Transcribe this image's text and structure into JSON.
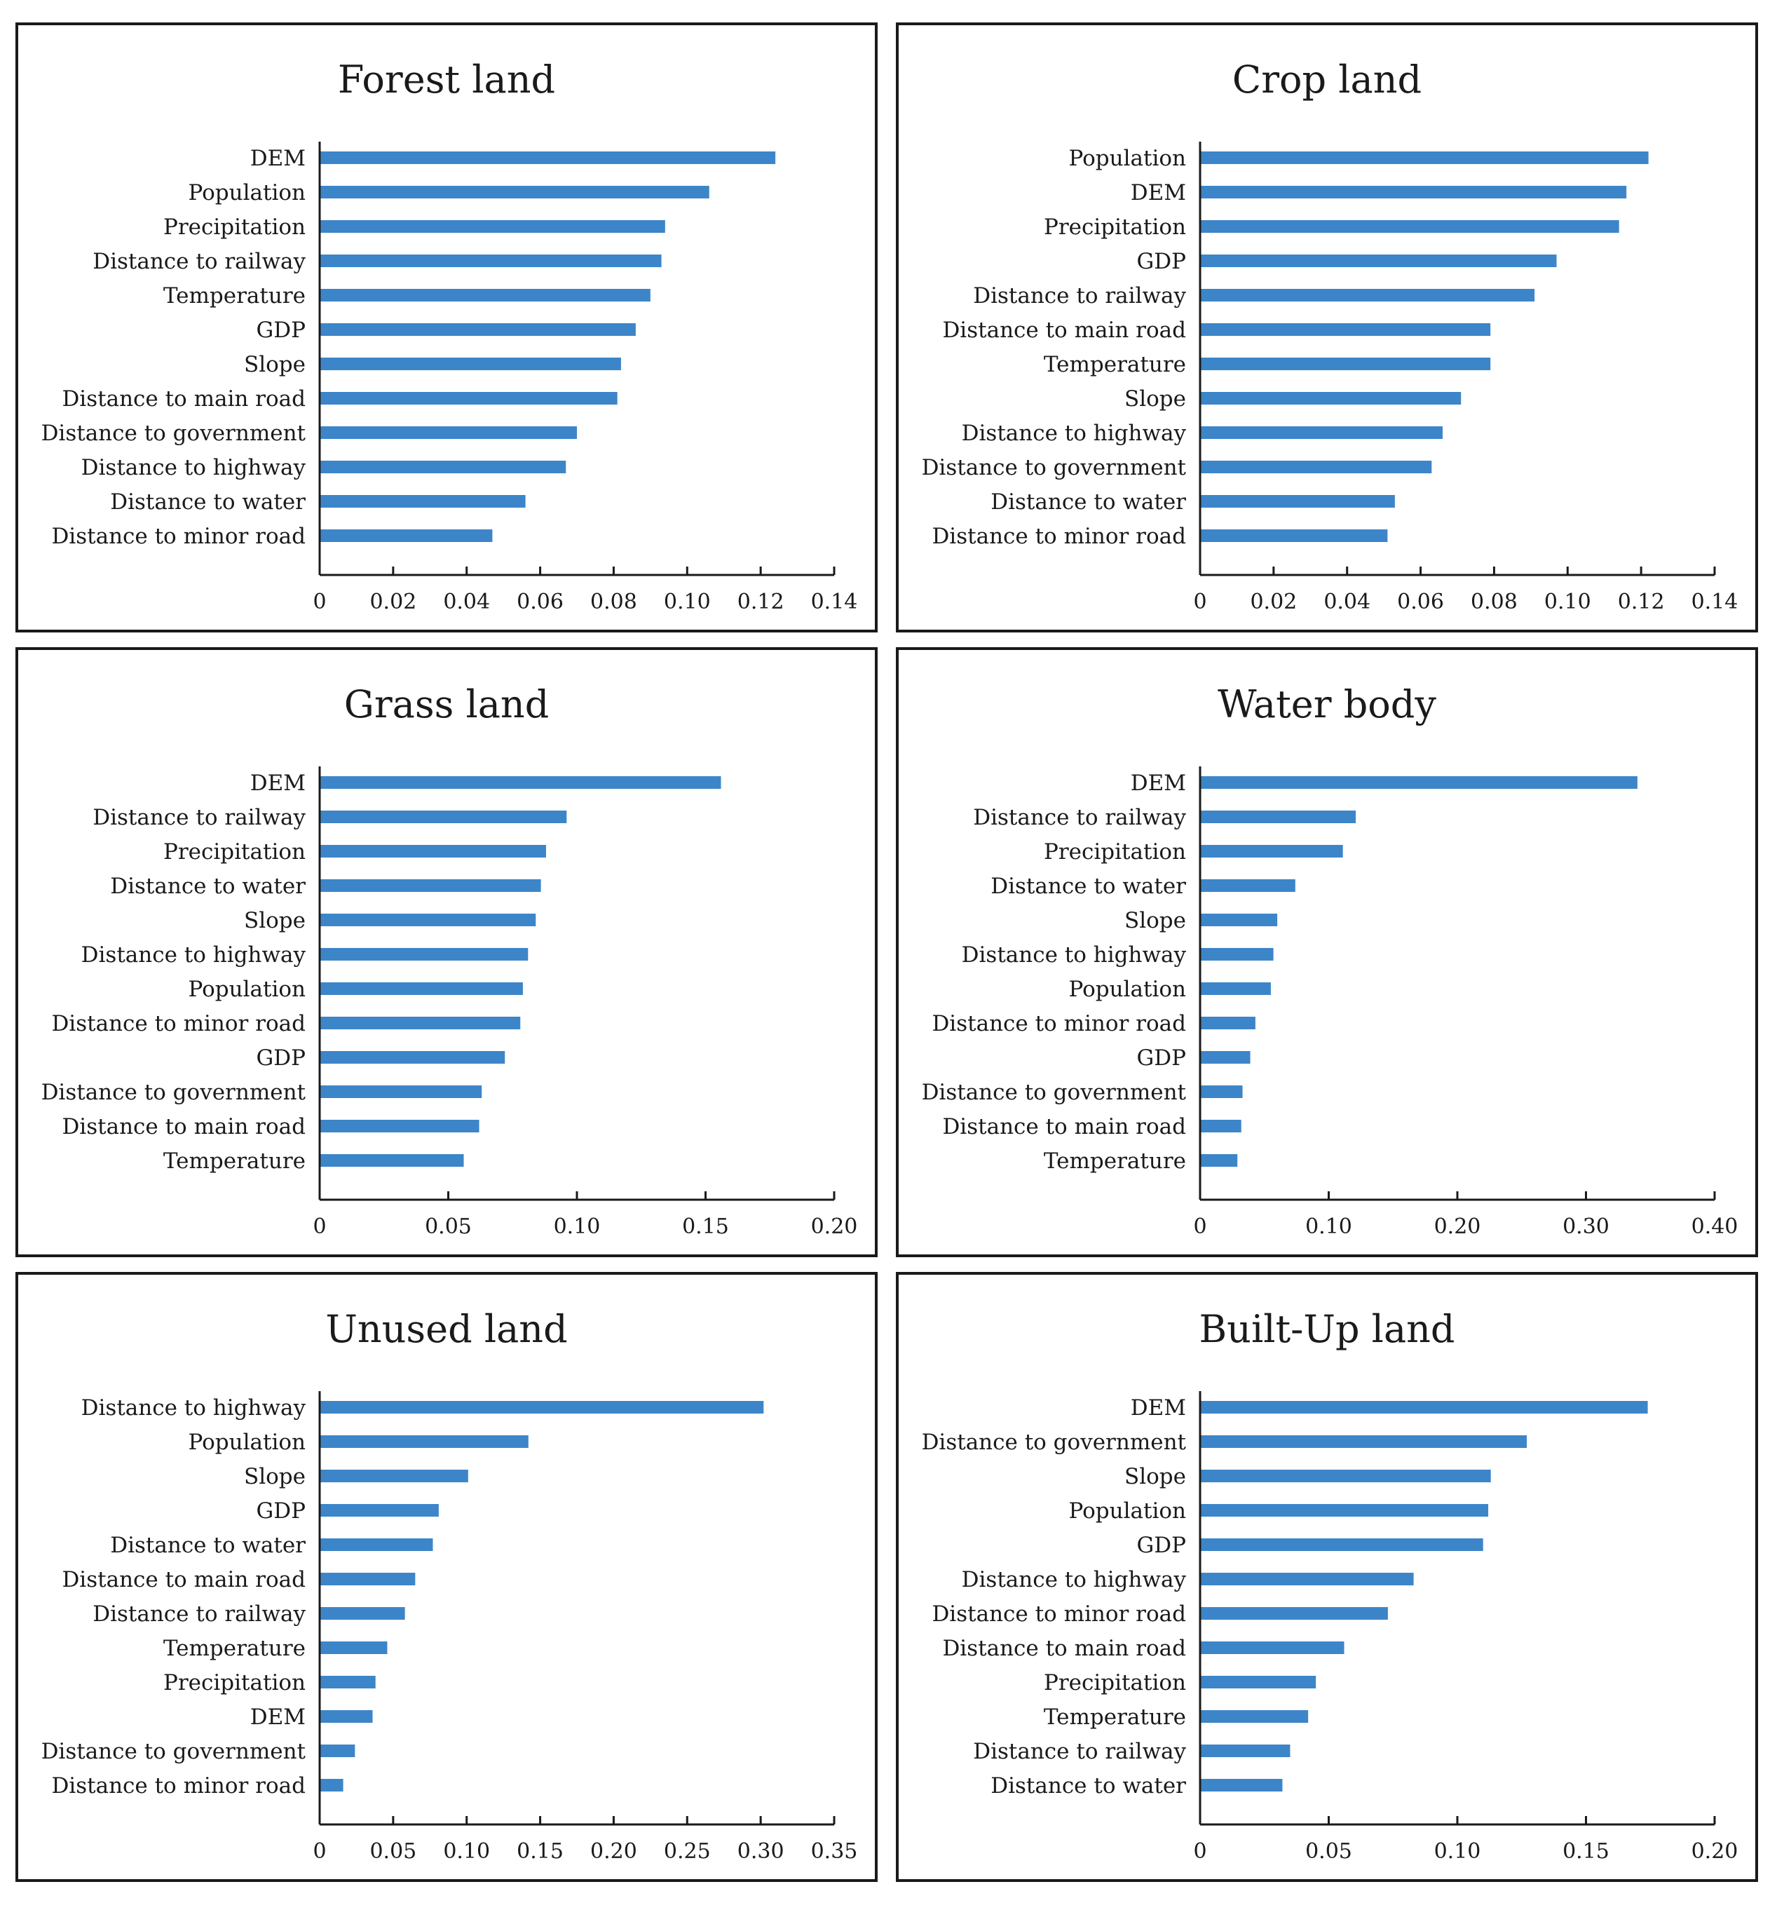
{
  "figure": {
    "bar_color": "#3d85c9",
    "frame_color": "#1a1a1a"
  },
  "chart_data": [
    {
      "type": "bar",
      "orientation": "horizontal",
      "title": "Forest land",
      "categories": [
        "DEM",
        "Population",
        "Precipitation",
        "Distance to railway",
        "Temperature",
        "GDP",
        "Slope",
        "Distance to main road",
        "Distance to government",
        "Distance to highway",
        "Distance to water",
        "Distance to minor road"
      ],
      "values": [
        0.124,
        0.106,
        0.094,
        0.093,
        0.09,
        0.086,
        0.082,
        0.081,
        0.07,
        0.067,
        0.056,
        0.047
      ],
      "xlim": [
        0,
        0.14
      ],
      "ticks": [
        0,
        0.02,
        0.04,
        0.06,
        0.08,
        0.1,
        0.12,
        0.14
      ],
      "tick_labels": [
        "0",
        "0.02",
        "0.04",
        "0.06",
        "0.08",
        "0.10",
        "0.12",
        "0.14"
      ],
      "xlabel": "",
      "ylabel": "",
      "grid": false
    },
    {
      "type": "bar",
      "orientation": "horizontal",
      "title": "Crop land",
      "categories": [
        "Population",
        "DEM",
        "Precipitation",
        "GDP",
        "Distance to railway",
        "Distance to main road",
        "Temperature",
        "Slope",
        "Distance to highway",
        "Distance to government",
        "Distance to water",
        "Distance to minor road"
      ],
      "values": [
        0.122,
        0.116,
        0.114,
        0.097,
        0.091,
        0.079,
        0.079,
        0.071,
        0.066,
        0.063,
        0.053,
        0.051
      ],
      "xlim": [
        0,
        0.14
      ],
      "ticks": [
        0,
        0.02,
        0.04,
        0.06,
        0.08,
        0.1,
        0.12,
        0.14
      ],
      "tick_labels": [
        "0",
        "0.02",
        "0.04",
        "0.06",
        "0.08",
        "0.10",
        "0.12",
        "0.14"
      ],
      "xlabel": "",
      "ylabel": "",
      "grid": false
    },
    {
      "type": "bar",
      "orientation": "horizontal",
      "title": "Grass land",
      "categories": [
        "DEM",
        "Distance to railway",
        "Precipitation",
        "Distance to water",
        "Slope",
        "Distance to highway",
        "Population",
        "Distance to minor road",
        "GDP",
        "Distance to government",
        "Distance to main road",
        "Temperature"
      ],
      "values": [
        0.156,
        0.096,
        0.088,
        0.086,
        0.084,
        0.081,
        0.079,
        0.078,
        0.072,
        0.063,
        0.062,
        0.056
      ],
      "xlim": [
        0,
        0.2
      ],
      "ticks": [
        0,
        0.05,
        0.1,
        0.15,
        0.2
      ],
      "tick_labels": [
        "0",
        "0.05",
        "0.10",
        "0.15",
        "0.20"
      ],
      "xlabel": "",
      "ylabel": "",
      "grid": false
    },
    {
      "type": "bar",
      "orientation": "horizontal",
      "title": "Water body",
      "categories": [
        "DEM",
        "Distance to railway",
        "Precipitation",
        "Distance to water",
        "Slope",
        "Distance to highway",
        "Population",
        "Distance to minor road",
        "GDP",
        "Distance to government",
        "Distance to main road",
        "Temperature"
      ],
      "values": [
        0.34,
        0.121,
        0.111,
        0.074,
        0.06,
        0.057,
        0.055,
        0.043,
        0.039,
        0.033,
        0.032,
        0.029
      ],
      "xlim": [
        0,
        0.4
      ],
      "ticks": [
        0,
        0.1,
        0.2,
        0.3,
        0.4
      ],
      "tick_labels": [
        "0",
        "0.10",
        "0.20",
        "0.30",
        "0.40"
      ],
      "xlabel": "",
      "ylabel": "",
      "grid": false
    },
    {
      "type": "bar",
      "orientation": "horizontal",
      "title": "Unused land",
      "categories": [
        "Distance to highway",
        "Population",
        "Slope",
        "GDP",
        "Distance to water",
        "Distance to main road",
        "Distance to railway",
        "Temperature",
        "Precipitation",
        "DEM",
        "Distance to government",
        "Distance to minor road"
      ],
      "values": [
        0.302,
        0.142,
        0.101,
        0.081,
        0.077,
        0.065,
        0.058,
        0.046,
        0.038,
        0.036,
        0.024,
        0.016
      ],
      "xlim": [
        0,
        0.35
      ],
      "ticks": [
        0,
        0.05,
        0.1,
        0.15,
        0.2,
        0.25,
        0.3,
        0.35
      ],
      "tick_labels": [
        "0",
        "0.05",
        "0.10",
        "0.15",
        "0.20",
        "0.25",
        "0.30",
        "0.35"
      ],
      "xlabel": "",
      "ylabel": "",
      "grid": false
    },
    {
      "type": "bar",
      "orientation": "horizontal",
      "title": "Built-Up land",
      "categories": [
        "DEM",
        "Distance to government",
        "Slope",
        "Population",
        "GDP",
        "Distance to highway",
        "Distance to minor road",
        "Distance to main road",
        "Precipitation",
        "Temperature",
        "Distance to railway",
        "Distance to water"
      ],
      "values": [
        0.174,
        0.127,
        0.113,
        0.112,
        0.11,
        0.083,
        0.073,
        0.056,
        0.045,
        0.042,
        0.035,
        0.032
      ],
      "xlim": [
        0,
        0.2
      ],
      "ticks": [
        0,
        0.05,
        0.1,
        0.15,
        0.2
      ],
      "tick_labels": [
        "0",
        "0.05",
        "0.10",
        "0.15",
        "0.20"
      ],
      "xlabel": "",
      "ylabel": "",
      "grid": false
    }
  ]
}
